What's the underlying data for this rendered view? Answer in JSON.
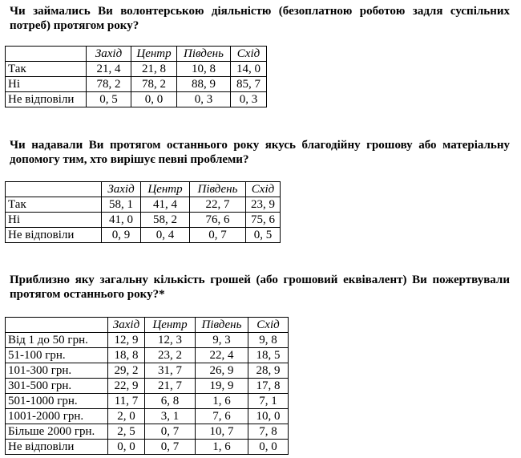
{
  "sections": [
    {
      "question": "Чи займались Ви волонтерською діяльністю (безоплатною роботою задля суспільних потреб) протягом року?",
      "columns": [
        "Захід",
        "Центр",
        "Південь",
        "Схід"
      ],
      "rows": [
        {
          "label": "Так",
          "values": [
            "21, 4",
            "21, 8",
            "10, 8",
            "14, 0"
          ]
        },
        {
          "label": "Ні",
          "values": [
            "78, 2",
            "78, 2",
            "88, 9",
            "85, 7"
          ]
        },
        {
          "label": "Не відповіли",
          "values": [
            "0, 5",
            "0, 0",
            "0, 3",
            "0, 3"
          ]
        }
      ]
    },
    {
      "question": "Чи надавали Ви протягом останнього року якусь благодійну грошову або матеріальну допомогу тим, хто вирішує певні проблеми?",
      "columns": [
        "Захід",
        "Центр",
        "Південь",
        "Схід"
      ],
      "rows": [
        {
          "label": "Так",
          "values": [
            "58, 1",
            "41, 4",
            "22, 7",
            "23, 9"
          ]
        },
        {
          "label": "Ні",
          "values": [
            "41, 0",
            "58, 2",
            "76, 6",
            "75, 6"
          ]
        },
        {
          "label": "Не відповіли",
          "values": [
            "0, 9",
            "0, 4",
            "0, 7",
            "0, 5"
          ]
        }
      ]
    },
    {
      "question": "Приблизно яку загальну кількість грошей (або грошовий еквівалент) Ви пожертвували протягом останнього року?*",
      "columns": [
        "Захід",
        "Центр",
        "Південь",
        "Схід"
      ],
      "rows": [
        {
          "label": "Від 1 до 50 грн.",
          "values": [
            "12, 9",
            "12, 3",
            "9, 3",
            "9, 8"
          ]
        },
        {
          "label": "51-100 грн.",
          "values": [
            "18, 8",
            "23, 2",
            "22, 4",
            "18, 5"
          ]
        },
        {
          "label": "101-300 грн.",
          "values": [
            "29, 2",
            "31, 7",
            "26, 9",
            "28, 9"
          ]
        },
        {
          "label": "301-500 грн.",
          "values": [
            "22, 9",
            "21, 7",
            "19, 9",
            "17, 8"
          ]
        },
        {
          "label": "501-1000 грн.",
          "values": [
            "11, 7",
            "6, 8",
            "1, 6",
            "7, 1"
          ]
        },
        {
          "label": "1001-2000 грн.",
          "values": [
            "2, 0",
            "3, 1",
            "7, 6",
            "10, 0"
          ]
        },
        {
          "label": "Більше 2000 грн.",
          "values": [
            "2, 5",
            "0, 7",
            "10, 7",
            "7, 8"
          ]
        },
        {
          "label": "Не відповіли",
          "values": [
            "0, 0",
            "0, 7",
            "1, 6",
            "0, 0"
          ]
        }
      ]
    }
  ]
}
